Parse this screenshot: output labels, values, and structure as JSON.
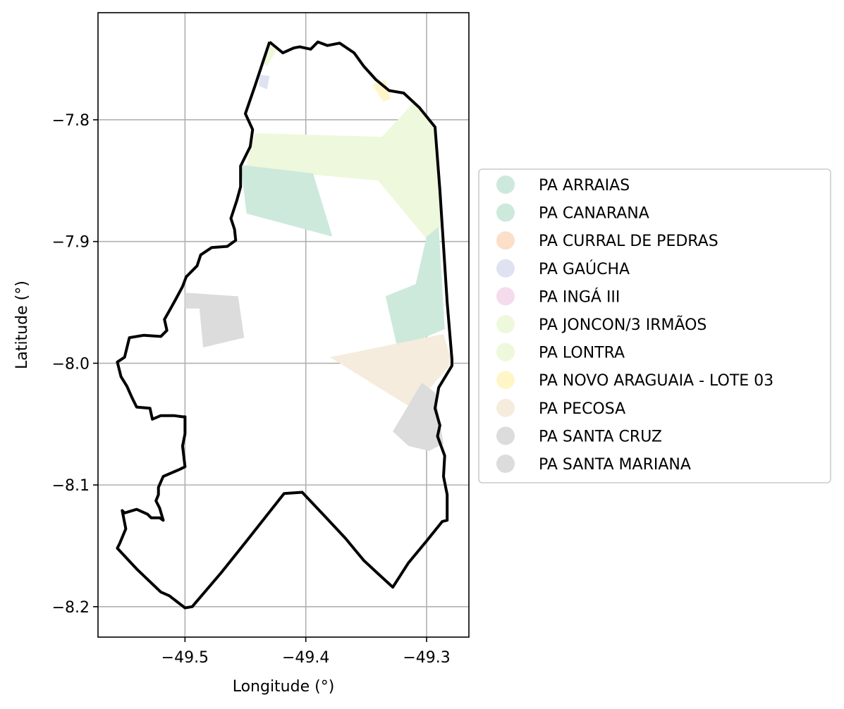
{
  "chart_data": {
    "type": "map",
    "xlabel": "Longitude (°)",
    "ylabel": "Latitude (°)",
    "xlim": [
      -49.572,
      -49.265
    ],
    "ylim": [
      -8.225,
      -7.712
    ],
    "x_ticks": [
      {
        "value": -49.5,
        "label": "−49.5"
      },
      {
        "value": -49.4,
        "label": "−49.4"
      },
      {
        "value": -49.3,
        "label": "−49.3"
      }
    ],
    "y_ticks": [
      {
        "value": -7.8,
        "label": "−7.8"
      },
      {
        "value": -7.9,
        "label": "−7.9"
      },
      {
        "value": -8.0,
        "label": "−8.0"
      },
      {
        "value": -8.1,
        "label": "−8.1"
      },
      {
        "value": -8.2,
        "label": "−8.2"
      }
    ],
    "grid": true,
    "legend_position": "outside right",
    "boundary": {
      "color": "#000000",
      "coords": [
        [
          -49.43,
          -7.736
        ],
        [
          -49.419,
          -7.745
        ],
        [
          -49.41,
          -7.741
        ],
        [
          -49.405,
          -7.74
        ],
        [
          -49.396,
          -7.742
        ],
        [
          -49.39,
          -7.736
        ],
        [
          -49.382,
          -7.739
        ],
        [
          -49.372,
          -7.737
        ],
        [
          -49.36,
          -7.745
        ],
        [
          -49.352,
          -7.756
        ],
        [
          -49.342,
          -7.767
        ],
        [
          -49.331,
          -7.776
        ],
        [
          -49.319,
          -7.778
        ],
        [
          -49.306,
          -7.79
        ],
        [
          -49.293,
          -7.806
        ],
        [
          -49.289,
          -7.858
        ],
        [
          -49.283,
          -7.95
        ],
        [
          -49.279,
          -7.997
        ],
        [
          -49.279,
          -8.002
        ],
        [
          -49.29,
          -8.02
        ],
        [
          -49.293,
          -8.037
        ],
        [
          -49.289,
          -8.051
        ],
        [
          -49.291,
          -8.06
        ],
        [
          -49.285,
          -8.076
        ],
        [
          -49.286,
          -8.093
        ],
        [
          -49.283,
          -8.108
        ],
        [
          -49.283,
          -8.129
        ],
        [
          -49.287,
          -8.13
        ],
        [
          -49.3,
          -8.146
        ],
        [
          -49.315,
          -8.164
        ],
        [
          -49.328,
          -8.184
        ],
        [
          -49.339,
          -8.174
        ],
        [
          -49.352,
          -8.162
        ],
        [
          -49.367,
          -8.144
        ],
        [
          -49.383,
          -8.127
        ],
        [
          -49.403,
          -8.106
        ],
        [
          -49.418,
          -8.107
        ],
        [
          -49.449,
          -8.146
        ],
        [
          -49.47,
          -8.172
        ],
        [
          -49.494,
          -8.2
        ],
        [
          -49.5,
          -8.201
        ],
        [
          -49.513,
          -8.191
        ],
        [
          -49.52,
          -8.188
        ],
        [
          -49.54,
          -8.169
        ],
        [
          -49.556,
          -8.152
        ],
        [
          -49.554,
          -8.148
        ],
        [
          -49.549,
          -8.136
        ],
        [
          -49.552,
          -8.121
        ],
        [
          -49.55,
          -8.123
        ],
        [
          -49.54,
          -8.12
        ],
        [
          -49.531,
          -8.124
        ],
        [
          -49.528,
          -8.127
        ],
        [
          -49.521,
          -8.127
        ],
        [
          -49.518,
          -8.129
        ],
        [
          -49.521,
          -8.119
        ],
        [
          -49.524,
          -8.113
        ],
        [
          -49.522,
          -8.108
        ],
        [
          -49.522,
          -8.102
        ],
        [
          -49.518,
          -8.093
        ],
        [
          -49.504,
          -8.087
        ],
        [
          -49.5,
          -8.085
        ],
        [
          -49.502,
          -8.068
        ],
        [
          -49.5,
          -8.058
        ],
        [
          -49.5,
          -8.044
        ],
        [
          -49.502,
          -8.044
        ],
        [
          -49.509,
          -8.043
        ],
        [
          -49.52,
          -8.043
        ],
        [
          -49.527,
          -8.046
        ],
        [
          -49.529,
          -8.037
        ],
        [
          -49.54,
          -8.036
        ],
        [
          -49.544,
          -8.028
        ],
        [
          -49.548,
          -8.019
        ],
        [
          -49.553,
          -8.011
        ],
        [
          -49.556,
          -7.999
        ],
        [
          -49.55,
          -7.995
        ],
        [
          -49.546,
          -7.979
        ],
        [
          -49.534,
          -7.977
        ],
        [
          -49.52,
          -7.978
        ],
        [
          -49.515,
          -7.973
        ],
        [
          -49.517,
          -7.964
        ],
        [
          -49.513,
          -7.957
        ],
        [
          -49.508,
          -7.948
        ],
        [
          -49.502,
          -7.937
        ],
        [
          -49.499,
          -7.929
        ],
        [
          -49.49,
          -7.92
        ],
        [
          -49.487,
          -7.911
        ],
        [
          -49.478,
          -7.905
        ],
        [
          -49.465,
          -7.904
        ],
        [
          -49.458,
          -7.899
        ],
        [
          -49.459,
          -7.89
        ],
        [
          -49.462,
          -7.881
        ],
        [
          -49.457,
          -7.866
        ],
        [
          -49.454,
          -7.855
        ],
        [
          -49.454,
          -7.838
        ],
        [
          -49.446,
          -7.822
        ],
        [
          -49.444,
          -7.808
        ],
        [
          -49.45,
          -7.795
        ],
        [
          -49.442,
          -7.772
        ],
        [
          -49.43,
          -7.736
        ]
      ]
    },
    "legend": [
      {
        "name": "PA ARRAIAS",
        "color": "#cde9dc"
      },
      {
        "name": "PA CANARANA",
        "color": "#cde9dc"
      },
      {
        "name": "PA CURRAL DE PEDRAS",
        "color": "#fbdfc8"
      },
      {
        "name": "PA GAÚCHA",
        "color": "#dfe3f1"
      },
      {
        "name": "PA INGÁ III",
        "color": "#f5dced"
      },
      {
        "name": "PA JONCON/3 IRMÃOS",
        "color": "#eef8dc"
      },
      {
        "name": "PA LONTRA",
        "color": "#eef8dc"
      },
      {
        "name": "PA NOVO ARAGUAIA - LOTE 03",
        "color": "#fff6c8"
      },
      {
        "name": "PA PECOSA",
        "color": "#f5ecdd"
      },
      {
        "name": "PA SANTA CRUZ",
        "color": "#dcdcdc"
      },
      {
        "name": "PA SANTA MARIANA",
        "color": "#dcdcdc"
      }
    ],
    "regions": [
      {
        "name": "PA LONTRA",
        "color": "#eef8dc",
        "coords": [
          [
            -49.43,
            -7.737
          ],
          [
            -49.423,
            -7.741
          ],
          [
            -49.432,
            -7.756
          ],
          [
            -49.437,
            -7.752
          ]
        ]
      },
      {
        "name": "PA GAÚCHA",
        "color": "#dfe3f1",
        "coords": [
          [
            -49.438,
            -7.763
          ],
          [
            -49.43,
            -7.764
          ],
          [
            -49.432,
            -7.775
          ],
          [
            -49.439,
            -7.772
          ]
        ]
      },
      {
        "name": "PA NOVO ARAGUAIA - LOTE 03",
        "color": "#fff6c8",
        "coords": [
          [
            -49.345,
            -7.771
          ],
          [
            -49.334,
            -7.767
          ],
          [
            -49.33,
            -7.783
          ],
          [
            -49.336,
            -7.785
          ]
        ]
      },
      {
        "name": "PA JONCON/3 IRMÃOS",
        "color": "#eef8dc",
        "coords": [
          [
            -49.442,
            -7.811
          ],
          [
            -49.337,
            -7.814
          ],
          [
            -49.31,
            -7.785
          ],
          [
            -49.293,
            -7.805
          ],
          [
            -49.288,
            -7.888
          ],
          [
            -49.3,
            -7.898
          ],
          [
            -49.34,
            -7.85
          ],
          [
            -49.45,
            -7.84
          ]
        ]
      },
      {
        "name": "PA ARRAIAS",
        "color": "#cde9dc",
        "coords": [
          [
            -49.454,
            -7.837
          ],
          [
            -49.394,
            -7.844
          ],
          [
            -49.378,
            -7.896
          ],
          [
            -49.449,
            -7.877
          ]
        ]
      },
      {
        "name": "PA CANARANA",
        "color": "#cde9dc",
        "coords": [
          [
            -49.3,
            -7.896
          ],
          [
            -49.29,
            -7.888
          ],
          [
            -49.285,
            -7.972
          ],
          [
            -49.324,
            -7.988
          ],
          [
            -49.334,
            -7.945
          ],
          [
            -49.309,
            -7.935
          ]
        ]
      },
      {
        "name": "PA PECOSA",
        "color": "#f5ecdd",
        "coords": [
          [
            -49.38,
            -7.995
          ],
          [
            -49.286,
            -7.976
          ],
          [
            -49.279,
            -8.0
          ],
          [
            -49.312,
            -8.037
          ]
        ]
      },
      {
        "name": "PA SANTA CRUZ",
        "color": "#dcdcdc",
        "coords": [
          [
            -49.5,
            -7.942
          ],
          [
            -49.456,
            -7.945
          ],
          [
            -49.451,
            -7.979
          ],
          [
            -49.485,
            -7.987
          ],
          [
            -49.488,
            -7.955
          ],
          [
            -49.5,
            -7.955
          ]
        ]
      },
      {
        "name": "PA SANTA MARIANA",
        "color": "#dcdcdc",
        "coords": [
          [
            -49.304,
            -8.016
          ],
          [
            -49.293,
            -8.024
          ],
          [
            -49.286,
            -8.066
          ],
          [
            -49.298,
            -8.072
          ],
          [
            -49.315,
            -8.068
          ],
          [
            -49.328,
            -8.056
          ]
        ]
      }
    ]
  }
}
